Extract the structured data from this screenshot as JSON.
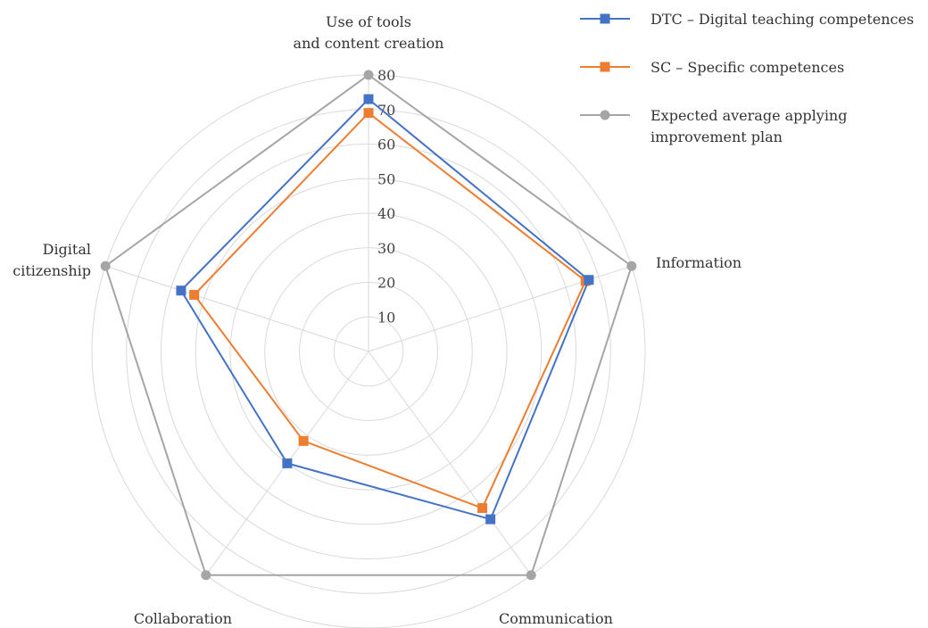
{
  "chart_data": {
    "type": "radar",
    "categories": [
      [
        "Use of tools",
        "and content creation"
      ],
      [
        "Information"
      ],
      [
        "Communication"
      ],
      [
        "Collaboration"
      ],
      [
        "Digital",
        "citizenship"
      ]
    ],
    "rlim": [
      0,
      80
    ],
    "ticks": [
      10,
      20,
      30,
      40,
      50,
      60,
      70,
      80
    ],
    "grid": true,
    "legend_position": "top-right",
    "series": [
      {
        "name": "DTC – Digital teaching competences",
        "color": "#4472C4",
        "marker": "square",
        "values": [
          73,
          67,
          60,
          40,
          57
        ]
      },
      {
        "name": "SC – Specific competences",
        "color": "#ED7D31",
        "marker": "square",
        "values": [
          69,
          66,
          56,
          32,
          53
        ]
      },
      {
        "name": [
          "Expected average applying",
          "improvement plan"
        ],
        "color": "#A5A5A5",
        "marker": "circle",
        "values": [
          80,
          80,
          80,
          80,
          80
        ]
      }
    ]
  }
}
